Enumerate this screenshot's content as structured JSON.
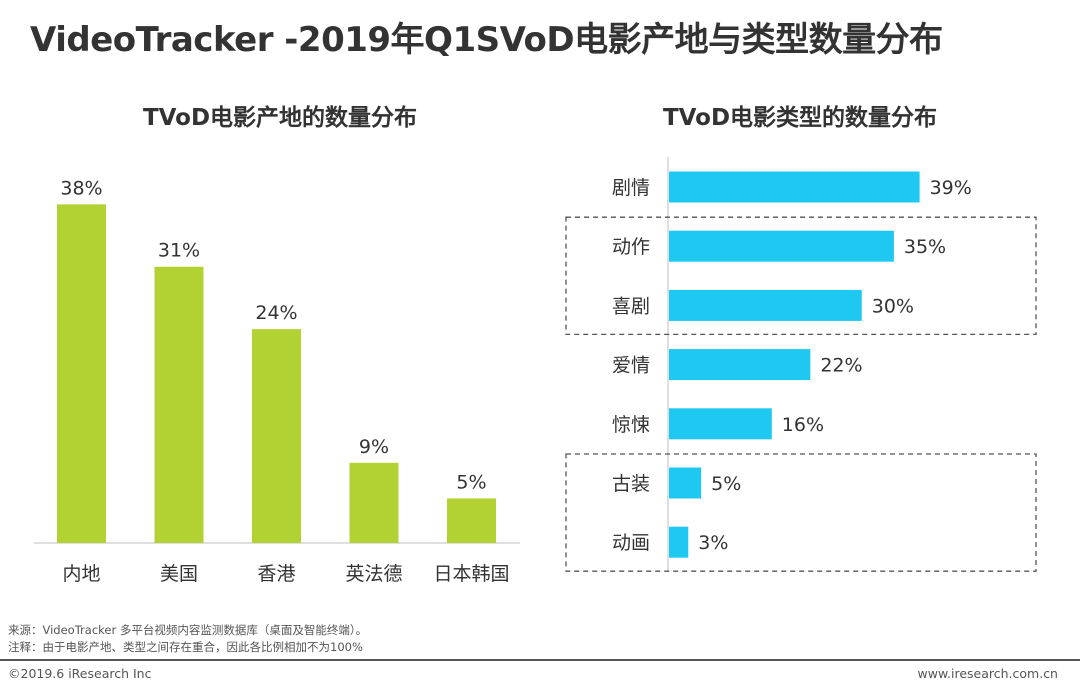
{
  "page": {
    "title": "VideoTracker -2019年Q1SVoD电影产地与类型数量分布",
    "source_note": "来源：VideoTracker 多平台视频内容监测数据库（桌面及智能终端）。",
    "remark_note": "注释：由于电影产地、类型之间存在重合，因此各比例相加不为100%",
    "copyright": "©2019.6 iResearch Inc",
    "website": "www.iresearch.com.cn"
  },
  "colors": {
    "origin_bar": "#b2d234",
    "genre_bar": "#1ec8f0",
    "text": "#333333"
  },
  "chart_data": [
    {
      "type": "bar",
      "title": "TVoD电影产地的数量分布",
      "categories": [
        "内地",
        "美国",
        "香港",
        "英法德",
        "日本韩国"
      ],
      "values": [
        38,
        31,
        24,
        9,
        5
      ],
      "labels": [
        "38%",
        "31%",
        "24%",
        "9%",
        "5%"
      ],
      "unit": "%",
      "ylim": [
        0,
        40
      ],
      "xlabel": "",
      "ylabel": "",
      "grid": false
    },
    {
      "type": "bar",
      "orientation": "horizontal",
      "title": "TVoD电影类型的数量分布",
      "categories": [
        "剧情",
        "动作",
        "喜剧",
        "爱情",
        "惊悚",
        "古装",
        "动画"
      ],
      "values": [
        39,
        35,
        30,
        22,
        16,
        5,
        3
      ],
      "labels": [
        "39%",
        "35%",
        "30%",
        "22%",
        "16%",
        "5%",
        "3%"
      ],
      "unit": "%",
      "xlim": [
        0,
        40
      ],
      "grid": false,
      "highlighted_groups": [
        [
          "动作",
          "喜剧"
        ],
        [
          "古装",
          "动画"
        ]
      ]
    }
  ]
}
